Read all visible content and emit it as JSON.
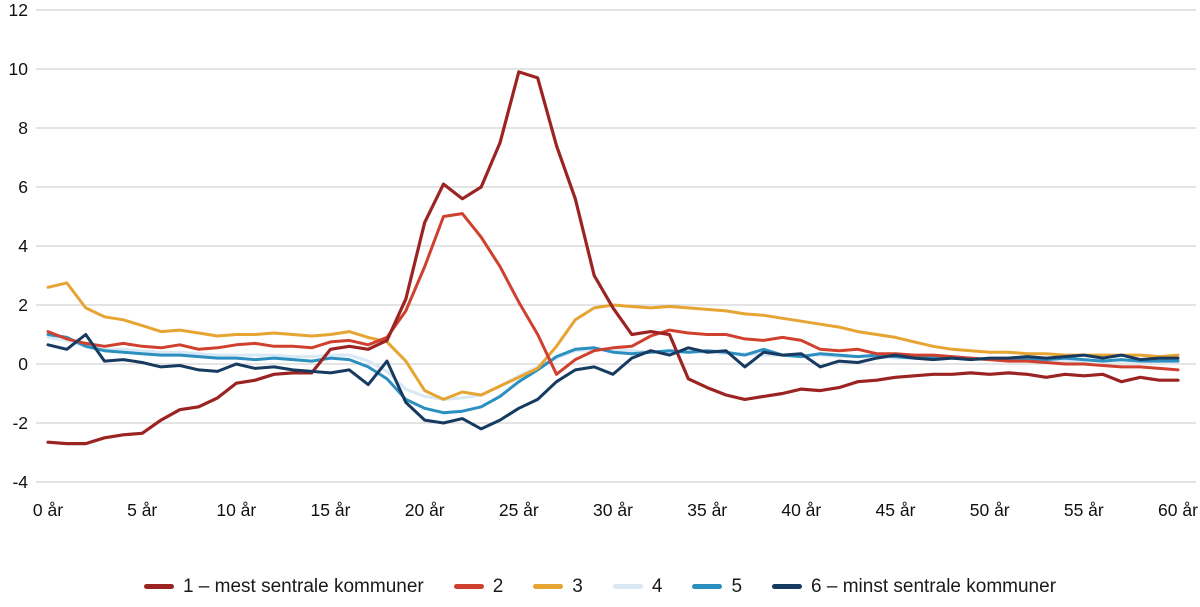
{
  "chart_data": {
    "type": "line",
    "title": "",
    "xlabel": "",
    "ylabel": "",
    "x_start": 0,
    "x_step": 1,
    "x_max": 60,
    "ylim": [
      -4,
      12
    ],
    "y_ticks": [
      12,
      10,
      8,
      6,
      4,
      2,
      0,
      -2,
      -4
    ],
    "x_ticks": [
      {
        "value": 0,
        "label": "0 år"
      },
      {
        "value": 5,
        "label": "5 år"
      },
      {
        "value": 10,
        "label": "10 år"
      },
      {
        "value": 15,
        "label": "15 år"
      },
      {
        "value": 20,
        "label": "20 år"
      },
      {
        "value": 25,
        "label": "25 år"
      },
      {
        "value": 30,
        "label": "30 år"
      },
      {
        "value": 35,
        "label": "35 år"
      },
      {
        "value": 40,
        "label": "40 år"
      },
      {
        "value": 45,
        "label": "45 år"
      },
      {
        "value": 50,
        "label": "50 år"
      },
      {
        "value": 55,
        "label": "55 år"
      },
      {
        "value": 60,
        "label": "60 år"
      }
    ],
    "grid": "horizontal",
    "grid_color": "#C8C8C8",
    "legend_position": "bottom",
    "draw_order": [
      3,
      4,
      2,
      1,
      0,
      5
    ],
    "series": [
      {
        "name": "1 – mest sentrale kommuner",
        "color": "#9B2423",
        "values": [
          -2.65,
          -2.7,
          -2.7,
          -2.5,
          -2.4,
          -2.35,
          -1.9,
          -1.55,
          -1.45,
          -1.15,
          -0.65,
          -0.55,
          -0.35,
          -0.3,
          -0.3,
          0.5,
          0.6,
          0.5,
          0.8,
          2.2,
          4.8,
          6.1,
          5.6,
          6.0,
          7.5,
          9.9,
          9.7,
          7.4,
          5.6,
          3.0,
          1.9,
          1.0,
          1.1,
          1.0,
          -0.5,
          -0.8,
          -1.05,
          -1.2,
          -1.1,
          -1.0,
          -0.85,
          -0.9,
          -0.8,
          -0.6,
          -0.55,
          -0.45,
          -0.4,
          -0.35,
          -0.35,
          -0.3,
          -0.35,
          -0.3,
          -0.35,
          -0.45,
          -0.35,
          -0.4,
          -0.35,
          -0.6,
          -0.45,
          -0.55,
          -0.55
        ]
      },
      {
        "name": "2",
        "color": "#D0402E",
        "values": [
          1.1,
          0.85,
          0.7,
          0.6,
          0.7,
          0.6,
          0.55,
          0.65,
          0.5,
          0.55,
          0.65,
          0.7,
          0.6,
          0.6,
          0.55,
          0.75,
          0.8,
          0.65,
          0.9,
          1.8,
          3.3,
          5.0,
          5.1,
          4.3,
          3.3,
          2.1,
          1.0,
          -0.35,
          0.15,
          0.45,
          0.55,
          0.6,
          0.95,
          1.15,
          1.05,
          1.0,
          1.0,
          0.85,
          0.8,
          0.9,
          0.8,
          0.5,
          0.45,
          0.5,
          0.35,
          0.35,
          0.3,
          0.3,
          0.25,
          0.2,
          0.15,
          0.1,
          0.1,
          0.05,
          0.0,
          0.0,
          -0.05,
          -0.1,
          -0.1,
          -0.15,
          -0.2
        ]
      },
      {
        "name": "3",
        "color": "#E6A432",
        "values": [
          2.6,
          2.75,
          1.9,
          1.6,
          1.5,
          1.3,
          1.1,
          1.15,
          1.05,
          0.95,
          1.0,
          1.0,
          1.05,
          1.0,
          0.95,
          1.0,
          1.1,
          0.9,
          0.75,
          0.1,
          -0.9,
          -1.2,
          -0.95,
          -1.05,
          -0.75,
          -0.45,
          -0.15,
          0.6,
          1.5,
          1.9,
          2.0,
          1.95,
          1.9,
          1.95,
          1.9,
          1.85,
          1.8,
          1.7,
          1.65,
          1.55,
          1.45,
          1.35,
          1.25,
          1.1,
          1.0,
          0.9,
          0.75,
          0.6,
          0.5,
          0.45,
          0.4,
          0.4,
          0.35,
          0.35,
          0.3,
          0.3,
          0.3,
          0.3,
          0.3,
          0.25,
          0.3
        ]
      },
      {
        "name": "4",
        "color": "#D9E8F5",
        "values": [
          0.9,
          0.8,
          0.6,
          0.5,
          0.5,
          0.45,
          0.4,
          0.4,
          0.35,
          0.3,
          0.3,
          0.3,
          0.3,
          0.25,
          0.25,
          0.3,
          0.3,
          0.1,
          -0.25,
          -0.85,
          -1.1,
          -1.2,
          -1.15,
          -1.05,
          -0.75,
          -0.4,
          -0.1,
          0.2,
          0.45,
          0.5,
          0.5,
          0.45,
          0.4,
          0.4,
          0.4,
          0.4,
          0.35,
          0.35,
          0.3,
          0.3,
          0.3,
          0.3,
          0.25,
          0.25,
          0.25,
          0.2,
          0.2,
          0.2,
          0.2,
          0.15,
          0.15,
          0.15,
          0.15,
          0.1,
          0.1,
          0.1,
          0.1,
          0.1,
          0.1,
          0.1,
          0.15
        ]
      },
      {
        "name": "5",
        "color": "#2B8FC0",
        "values": [
          1.0,
          0.9,
          0.6,
          0.45,
          0.4,
          0.35,
          0.3,
          0.3,
          0.25,
          0.2,
          0.2,
          0.15,
          0.2,
          0.15,
          0.1,
          0.2,
          0.15,
          -0.1,
          -0.5,
          -1.2,
          -1.5,
          -1.65,
          -1.6,
          -1.45,
          -1.1,
          -0.6,
          -0.2,
          0.25,
          0.5,
          0.55,
          0.4,
          0.35,
          0.4,
          0.45,
          0.4,
          0.45,
          0.4,
          0.3,
          0.5,
          0.3,
          0.25,
          0.35,
          0.3,
          0.25,
          0.3,
          0.25,
          0.2,
          0.25,
          0.2,
          0.2,
          0.15,
          0.2,
          0.15,
          0.15,
          0.2,
          0.15,
          0.1,
          0.15,
          0.1,
          0.1,
          0.1
        ]
      },
      {
        "name": "6 – minst sentrale kommuner",
        "color": "#173A60",
        "values": [
          0.65,
          0.5,
          1.0,
          0.1,
          0.15,
          0.05,
          -0.1,
          -0.05,
          -0.2,
          -0.25,
          0.0,
          -0.15,
          -0.1,
          -0.2,
          -0.25,
          -0.3,
          -0.2,
          -0.7,
          0.1,
          -1.3,
          -1.9,
          -2.0,
          -1.85,
          -2.2,
          -1.9,
          -1.5,
          -1.2,
          -0.6,
          -0.2,
          -0.1,
          -0.35,
          0.2,
          0.45,
          0.3,
          0.55,
          0.4,
          0.45,
          -0.1,
          0.4,
          0.3,
          0.35,
          -0.1,
          0.1,
          0.05,
          0.2,
          0.3,
          0.2,
          0.15,
          0.2,
          0.15,
          0.2,
          0.2,
          0.25,
          0.2,
          0.25,
          0.3,
          0.2,
          0.3,
          0.15,
          0.2,
          0.2
        ]
      }
    ]
  }
}
